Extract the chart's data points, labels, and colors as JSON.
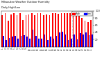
{
  "title": "Milwaukee Weather Outdoor Humidity",
  "subtitle": "Daily High/Low",
  "high_values": [
    87,
    93,
    72,
    90,
    93,
    88,
    93,
    75,
    88,
    90,
    93,
    87,
    93,
    93,
    88,
    90,
    87,
    93,
    93,
    91,
    93,
    93,
    93,
    93,
    93,
    93,
    88,
    80,
    72,
    68,
    75
  ],
  "low_values": [
    30,
    18,
    25,
    28,
    30,
    22,
    30,
    32,
    28,
    22,
    48,
    30,
    23,
    22,
    35,
    18,
    28,
    22,
    30,
    40,
    42,
    35,
    18,
    22,
    35,
    20,
    38,
    35,
    40,
    32,
    35
  ],
  "x_labels": [
    "1",
    "2",
    "3",
    "4",
    "5",
    "6",
    "7",
    "8",
    "9",
    "10",
    "11",
    "12",
    "13",
    "14",
    "15",
    "16",
    "17",
    "18",
    "19",
    "20",
    "21",
    "22",
    "23",
    "24",
    "25",
    "26",
    "27",
    "28",
    "29",
    "30",
    "31"
  ],
  "y_ticks": [
    20,
    40,
    60,
    80,
    100
  ],
  "high_color": "#ff0000",
  "low_color": "#0000ff",
  "background_color": "#ffffff",
  "ylim": [
    0,
    100
  ],
  "bar_width": 0.4,
  "legend_high": "High",
  "legend_low": "Low",
  "dotted_line_x": 23.5
}
